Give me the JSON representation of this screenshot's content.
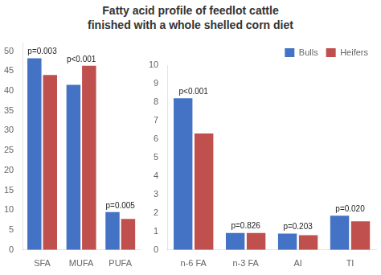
{
  "title": "Fatty acid profile of feedlot cattle\nfinished with a whole shelled corn diet",
  "chart_data": [
    {
      "type": "bar",
      "categories": [
        "SFA",
        "MUFA",
        "PUFA"
      ],
      "series": [
        {
          "color": "#4472C4",
          "values": [
            48.2,
            41.5,
            9.5
          ]
        },
        {
          "color": "#C0504D",
          "values": [
            44.0,
            46.3,
            7.8
          ]
        }
      ],
      "ylim": [
        0,
        52
      ],
      "yticks": [
        0,
        5,
        10,
        15,
        20,
        25,
        30,
        35,
        40,
        45,
        50
      ],
      "grid": false,
      "annotations": [
        {
          "category": "SFA",
          "text": "p=0.003"
        },
        {
          "category": "MUFA",
          "text": "p<0.001"
        },
        {
          "category": "PUFA",
          "text": "p=0.005"
        }
      ]
    },
    {
      "type": "bar",
      "categories": [
        "n-6 FA",
        "n-3 FA",
        "AI",
        "TI"
      ],
      "series": [
        {
          "name": "Bulls",
          "color": "#4472C4",
          "values": [
            8.2,
            0.92,
            0.88,
            1.85
          ]
        },
        {
          "name": "Heifers",
          "color": "#C0504D",
          "values": [
            6.3,
            0.92,
            0.8,
            1.55
          ]
        }
      ],
      "ylim": [
        0,
        10
      ],
      "yticks": [
        0,
        1,
        2,
        3,
        4,
        5,
        6,
        7,
        8,
        9,
        10
      ],
      "grid": false,
      "legend": "upper right",
      "annotations": [
        {
          "category": "n-6 FA",
          "text": "p<0.001"
        },
        {
          "category": "n-3 FA",
          "text": "p=0.826"
        },
        {
          "category": "AI",
          "text": "p=0.203"
        },
        {
          "category": "TI",
          "text": "p=0.020"
        }
      ]
    }
  ]
}
